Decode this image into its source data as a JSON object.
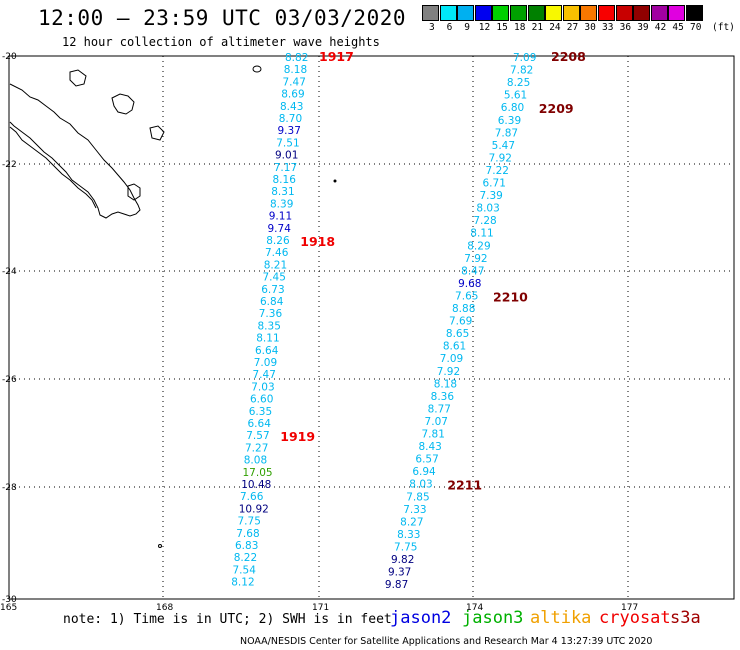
{
  "title": "12:00 – 23:59 UTC 03/03/2020",
  "subtitle": "12 hour collection of altimeter wave heights",
  "legend": {
    "unit": "(ft)",
    "bins": [
      {
        "label": "3",
        "color": "#808080"
      },
      {
        "label": "6",
        "color": "#00e8f8"
      },
      {
        "label": "9",
        "color": "#00b0f0"
      },
      {
        "label": "12",
        "color": "#0000f0"
      },
      {
        "label": "15",
        "color": "#00d000"
      },
      {
        "label": "18",
        "color": "#00a000"
      },
      {
        "label": "21",
        "color": "#008000"
      },
      {
        "label": "24",
        "color": "#f8f800"
      },
      {
        "label": "27",
        "color": "#f8c000"
      },
      {
        "label": "30",
        "color": "#f87800"
      },
      {
        "label": "33",
        "color": "#f80000"
      },
      {
        "label": "36",
        "color": "#c80000"
      },
      {
        "label": "39",
        "color": "#900000"
      },
      {
        "label": "42",
        "color": "#a000a0"
      },
      {
        "label": "45",
        "color": "#e000e0"
      },
      {
        "label": "70",
        "color": "#000000"
      }
    ]
  },
  "axes": {
    "lat_labels": [
      "-20",
      "-22",
      "-24",
      "-26",
      "-28",
      "-30"
    ],
    "lon_labels": [
      "165",
      "168",
      "171",
      "174",
      "177"
    ]
  },
  "colors": {
    "cyan": "#00b8f0",
    "blue": "#0000c8",
    "green": "#30a000",
    "jason3_red": "#f00000",
    "dark_red": "#800000",
    "navy": "#000080"
  },
  "track_west": {
    "values": [
      {
        "v": "8.82",
        "c": "cyan"
      },
      {
        "v": "8.18",
        "c": "cyan"
      },
      {
        "v": "7.47",
        "c": "cyan"
      },
      {
        "v": "8.69",
        "c": "cyan"
      },
      {
        "v": "8.43",
        "c": "cyan"
      },
      {
        "v": "8.70",
        "c": "cyan"
      },
      {
        "v": "9.37",
        "c": "blue"
      },
      {
        "v": "7.51",
        "c": "cyan"
      },
      {
        "v": "9.01",
        "c": "navy"
      },
      {
        "v": "7.17",
        "c": "cyan"
      },
      {
        "v": "8.16",
        "c": "cyan"
      },
      {
        "v": "8.31",
        "c": "cyan"
      },
      {
        "v": "8.39",
        "c": "cyan"
      },
      {
        "v": "9.11",
        "c": "blue"
      },
      {
        "v": "9.74",
        "c": "blue"
      },
      {
        "v": "8.26",
        "c": "cyan"
      },
      {
        "v": "7.46",
        "c": "cyan"
      },
      {
        "v": "8.21",
        "c": "cyan"
      },
      {
        "v": "7.45",
        "c": "cyan"
      },
      {
        "v": "6.73",
        "c": "cyan"
      },
      {
        "v": "6.84",
        "c": "cyan"
      },
      {
        "v": "7.36",
        "c": "cyan"
      },
      {
        "v": "8.35",
        "c": "cyan"
      },
      {
        "v": "8.11",
        "c": "cyan"
      },
      {
        "v": "6.64",
        "c": "cyan"
      },
      {
        "v": "7.09",
        "c": "cyan"
      },
      {
        "v": "7.47",
        "c": "cyan"
      },
      {
        "v": "7.03",
        "c": "cyan"
      },
      {
        "v": "6.60",
        "c": "cyan"
      },
      {
        "v": "6.35",
        "c": "cyan"
      },
      {
        "v": "6.64",
        "c": "cyan"
      },
      {
        "v": "7.57",
        "c": "cyan"
      },
      {
        "v": "7.27",
        "c": "cyan"
      },
      {
        "v": "8.08",
        "c": "cyan"
      },
      {
        "v": "17.05",
        "c": "green"
      },
      {
        "v": "10.48",
        "c": "navy"
      },
      {
        "v": "7.66",
        "c": "cyan"
      },
      {
        "v": "10.92",
        "c": "navy"
      },
      {
        "v": "7.75",
        "c": "cyan"
      },
      {
        "v": "7.68",
        "c": "cyan"
      },
      {
        "v": "6.83",
        "c": "cyan"
      },
      {
        "v": "8.22",
        "c": "cyan"
      },
      {
        "v": "7.54",
        "c": "cyan"
      },
      {
        "v": "8.12",
        "c": "cyan"
      }
    ],
    "passes": [
      {
        "label": "1917",
        "c": "jason3_red",
        "at": 0
      },
      {
        "label": "1918",
        "c": "jason3_red",
        "at": 15
      },
      {
        "label": "1919",
        "c": "jason3_red",
        "at": 31
      }
    ]
  },
  "track_east": {
    "values": [
      {
        "v": "7.09",
        "c": "cyan"
      },
      {
        "v": "7.82",
        "c": "cyan"
      },
      {
        "v": "8.25",
        "c": "cyan"
      },
      {
        "v": "5.61",
        "c": "cyan"
      },
      {
        "v": "6.80",
        "c": "cyan"
      },
      {
        "v": "6.39",
        "c": "cyan"
      },
      {
        "v": "7.87",
        "c": "cyan"
      },
      {
        "v": "5.47",
        "c": "cyan"
      },
      {
        "v": "7.92",
        "c": "cyan"
      },
      {
        "v": "7.22",
        "c": "cyan"
      },
      {
        "v": "6.71",
        "c": "cyan"
      },
      {
        "v": "7.39",
        "c": "cyan"
      },
      {
        "v": "8.03",
        "c": "cyan"
      },
      {
        "v": "7.28",
        "c": "cyan"
      },
      {
        "v": "8.11",
        "c": "cyan"
      },
      {
        "v": "8.29",
        "c": "cyan"
      },
      {
        "v": "7.92",
        "c": "cyan"
      },
      {
        "v": "8.47",
        "c": "cyan"
      },
      {
        "v": "9.68",
        "c": "blue"
      },
      {
        "v": "7.65",
        "c": "cyan"
      },
      {
        "v": "8.88",
        "c": "cyan"
      },
      {
        "v": "7.69",
        "c": "cyan"
      },
      {
        "v": "8.65",
        "c": "cyan"
      },
      {
        "v": "8.61",
        "c": "cyan"
      },
      {
        "v": "7.09",
        "c": "cyan"
      },
      {
        "v": "7.92",
        "c": "cyan"
      },
      {
        "v": "8.18",
        "c": "cyan"
      },
      {
        "v": "8.36",
        "c": "cyan"
      },
      {
        "v": "8.77",
        "c": "cyan"
      },
      {
        "v": "7.07",
        "c": "cyan"
      },
      {
        "v": "7.81",
        "c": "cyan"
      },
      {
        "v": "8.43",
        "c": "cyan"
      },
      {
        "v": "6.57",
        "c": "cyan"
      },
      {
        "v": "6.94",
        "c": "cyan"
      },
      {
        "v": "8.03",
        "c": "cyan"
      },
      {
        "v": "7.85",
        "c": "cyan"
      },
      {
        "v": "7.33",
        "c": "cyan"
      },
      {
        "v": "8.27",
        "c": "cyan"
      },
      {
        "v": "8.33",
        "c": "cyan"
      },
      {
        "v": "7.75",
        "c": "cyan"
      },
      {
        "v": "9.82",
        "c": "navy"
      },
      {
        "v": "9.37",
        "c": "navy"
      },
      {
        "v": "9.87",
        "c": "navy"
      }
    ],
    "passes": [
      {
        "label": "2208",
        "c": "dark_red",
        "at": 0
      },
      {
        "label": "2209",
        "c": "dark_red",
        "at": 4
      },
      {
        "label": "2210",
        "c": "dark_red",
        "at": 19
      },
      {
        "label": "2211",
        "c": "dark_red",
        "at": 34
      }
    ]
  },
  "footer": {
    "note": "note: 1) Time is in UTC; 2) SWH is in feet",
    "satellites": [
      {
        "name": "jason2",
        "color": "#0000e0"
      },
      {
        "name": "jason3",
        "color": "#00b000"
      },
      {
        "name": "altika",
        "color": "#f0a000"
      },
      {
        "name": "cryosat",
        "color": "#f00000"
      },
      {
        "name": "s3a",
        "color": "#a00000"
      }
    ],
    "credit": "NOAA/NESDIS Center for Satellite Applications and Research    Mar  4 13:27:39 UTC 2020"
  }
}
